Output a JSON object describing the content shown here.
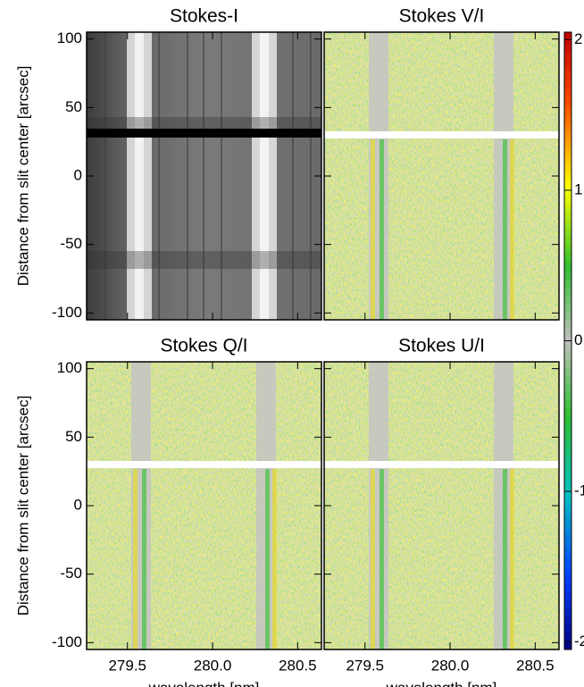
{
  "chart_data": [
    {
      "type": "image",
      "title": "Stokes-I",
      "ylabel": "Distance from slit center [arcsec]",
      "xlim": [
        279.26,
        280.64
      ],
      "xticks": [
        279.5,
        {
          "value": 280,
          "label": "280.0"
        },
        280.5
      ],
      "xtick_labels": false,
      "ylim": [
        -105,
        105
      ],
      "yticks": [
        100,
        50,
        0,
        -50,
        -100
      ],
      "ytick_labels": true
    },
    {
      "type": "image",
      "title": "Stokes V/I",
      "xlim": [
        279.26,
        280.64
      ],
      "xticks": [
        279.5,
        {
          "value": 280,
          "label": "280.0"
        },
        280.5
      ],
      "xtick_labels": false,
      "ylim": [
        -105,
        105
      ],
      "yticks": [
        100,
        50,
        0,
        -50,
        -100
      ],
      "ytick_labels": false
    },
    {
      "type": "image",
      "title": "Stokes Q/I",
      "ylabel": "Distance from slit center [arcsec]",
      "xlabel": "wavelength [nm]",
      "xlim": [
        279.26,
        280.64
      ],
      "xticks": [
        279.5,
        {
          "value": 280,
          "label": "280.0"
        },
        280.5
      ],
      "xtick_labels": true,
      "ylim": [
        -105,
        105
      ],
      "yticks": [
        100,
        50,
        0,
        -50,
        -100
      ],
      "ytick_labels": true
    },
    {
      "type": "image",
      "title": "Stokes U/I",
      "xlabel": "wavelength [nm]",
      "xlim": [
        279.26,
        280.64
      ],
      "xticks": [
        279.5,
        {
          "value": 280,
          "label": "280.0"
        },
        280.5
      ],
      "xtick_labels": true,
      "ylim": [
        -105,
        105
      ],
      "yticks": [
        100,
        50,
        0,
        -50,
        -100
      ],
      "ytick_labels": false
    }
  ],
  "colorbar": {
    "lim": [
      -2.05,
      2.05
    ],
    "ticks": [
      2,
      1,
      0,
      -1,
      -2
    ]
  }
}
